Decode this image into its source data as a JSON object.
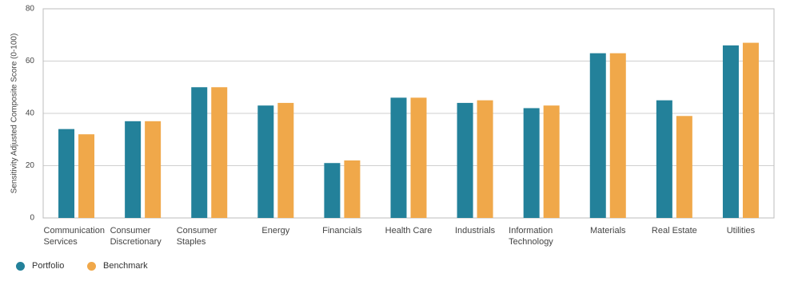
{
  "chart_data": {
    "type": "bar",
    "y_label": "Sensitivity Adjusted Composite Score (0-100)",
    "categories": [
      "Communication Services",
      "Consumer Discretionary",
      "Consumer Staples",
      "Energy",
      "Financials",
      "Health Care",
      "Industrials",
      "Information Technology",
      "Materials",
      "Real Estate",
      "Utilities"
    ],
    "series": [
      {
        "name": "Portfolio",
        "color": "#23819a",
        "values": [
          34,
          37,
          50,
          43,
          21,
          46,
          44,
          42,
          63,
          45,
          66
        ]
      },
      {
        "name": "Benchmark",
        "color": "#f0a84a",
        "values": [
          32,
          37,
          50,
          44,
          22,
          46,
          45,
          43,
          63,
          39,
          67
        ]
      }
    ],
    "ylim": [
      0,
      80
    ],
    "yticks": [
      0,
      20,
      40,
      60,
      80
    ],
    "grid": true
  }
}
